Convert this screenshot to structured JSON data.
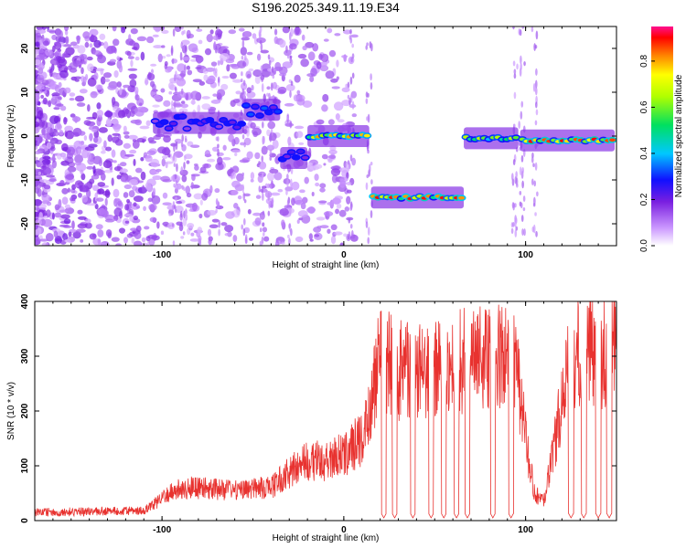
{
  "figure_title": "S196.2025.349.11.19.E34",
  "chart_data": [
    {
      "type": "heatmap",
      "title": "S196.2025.349.11.19.E34",
      "xlabel": "Height of straight line (km)",
      "ylabel": "Frequency (Hz)",
      "xlim": [
        -170,
        150
      ],
      "ylim": [
        -25,
        25
      ],
      "xticks": [
        -100,
        0,
        100
      ],
      "yticks": [
        -20,
        -10,
        0,
        10,
        20
      ],
      "colorbar": {
        "label": "Normalized spectral amplitude",
        "range": [
          0,
          0.95
        ],
        "ticks": [
          "0.0",
          "0.2",
          "0.4",
          "0.6",
          "0.8"
        ]
      },
      "ridge_segments": [
        {
          "x_start": -105,
          "x_end": -55,
          "frequency_hz": 3,
          "peak_amplitude": 0.3
        },
        {
          "x_start": -55,
          "x_end": -35,
          "frequency_hz": 6,
          "peak_amplitude": 0.35
        },
        {
          "x_start": -35,
          "x_end": -20,
          "frequency_hz": -5,
          "peak_amplitude": 0.3
        },
        {
          "x_start": -20,
          "x_end": 14,
          "frequency_hz": 0,
          "peak_amplitude": 0.85
        },
        {
          "x_start": 15,
          "x_end": 66,
          "frequency_hz": -14,
          "peak_amplitude": 0.95
        },
        {
          "x_start": 66,
          "x_end": 96,
          "frequency_hz": -0.5,
          "peak_amplitude": 0.7
        },
        {
          "x_start": 97,
          "x_end": 149,
          "frequency_hz": -1,
          "peak_amplitude": 0.95
        }
      ]
    },
    {
      "type": "line",
      "xlabel": "Height of straight line (km)",
      "ylabel": "SNR (10 * v/v)",
      "xlim": [
        -170,
        150
      ],
      "ylim": [
        0,
        400
      ],
      "xticks": [
        -100,
        0,
        100
      ],
      "yticks": [
        0,
        100,
        200,
        300,
        400
      ],
      "color": "#e8322f",
      "envelope": {
        "x": [
          -170,
          -110,
          -100,
          -90,
          -80,
          -60,
          -40,
          -30,
          -20,
          -10,
          0,
          10,
          15,
          20,
          30,
          40,
          50,
          60,
          70,
          80,
          90,
          95,
          100,
          105,
          110,
          115,
          120,
          125,
          130,
          140,
          150
        ],
        "y": [
          15,
          18,
          40,
          60,
          60,
          55,
          60,
          90,
          110,
          110,
          120,
          150,
          220,
          295,
          280,
          270,
          270,
          285,
          290,
          300,
          300,
          280,
          150,
          50,
          35,
          120,
          220,
          300,
          320,
          300,
          320
        ]
      },
      "dips": [
        22,
        28,
        38,
        48,
        55,
        62,
        68,
        82,
        92,
        125,
        132,
        140,
        146
      ]
    }
  ]
}
